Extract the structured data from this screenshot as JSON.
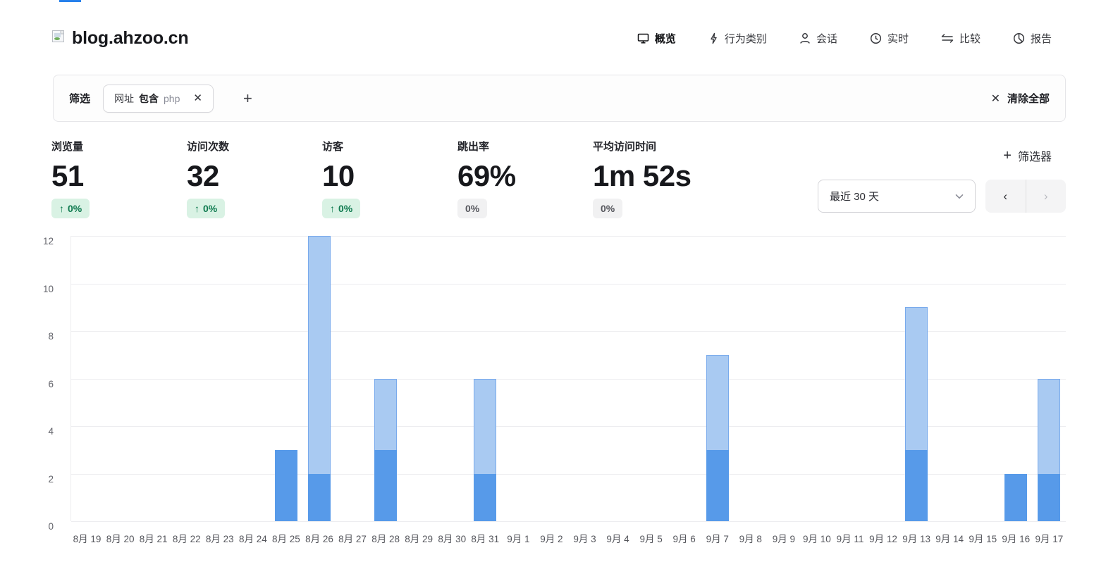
{
  "page": {
    "title": "blog.ahzoo.cn"
  },
  "nav": {
    "items": [
      {
        "label": "概览",
        "icon": "monitor-icon",
        "active": true
      },
      {
        "label": "行为类别",
        "icon": "lightning-icon",
        "active": false
      },
      {
        "label": "会话",
        "icon": "user-icon",
        "active": false
      },
      {
        "label": "实时",
        "icon": "clock-icon",
        "active": false
      },
      {
        "label": "比较",
        "icon": "compare-arrows-icon",
        "active": false
      },
      {
        "label": "报告",
        "icon": "pie-chart-icon",
        "active": false
      }
    ]
  },
  "filter_bar": {
    "label": "筛选",
    "chips": [
      {
        "field": "网址",
        "operator": "包含",
        "value": "php"
      }
    ],
    "add_label": "+",
    "clear_all_label": "清除全部",
    "clear_all_icon": "✕"
  },
  "metrics": {
    "items": [
      {
        "label": "浏览量",
        "value": "51",
        "change": "0%",
        "arrow": "↑",
        "style": "positive"
      },
      {
        "label": "访问次数",
        "value": "32",
        "change": "0%",
        "arrow": "↑",
        "style": "positive"
      },
      {
        "label": "访客",
        "value": "10",
        "change": "0%",
        "arrow": "↑",
        "style": "positive"
      },
      {
        "label": "跳出率",
        "value": "69%",
        "change": "0%",
        "arrow": "",
        "style": "neutral"
      },
      {
        "label": "平均访问时间",
        "value": "1m 52s",
        "change": "0%",
        "arrow": "",
        "style": "neutral"
      }
    ]
  },
  "controls": {
    "filters_button_label": "筛选器",
    "filters_button_plus": "+",
    "date_range_value": "最近 30 天",
    "prev_label": "‹",
    "next_label": "›"
  },
  "chart_data": {
    "type": "bar",
    "stacked": true,
    "title": "",
    "xlabel": "",
    "ylabel": "",
    "ylim": [
      0,
      12
    ],
    "yticks": [
      0,
      2,
      4,
      6,
      8,
      10,
      12
    ],
    "grid": true,
    "legend_position": "none",
    "categories": [
      "8月 19",
      "8月 20",
      "8月 21",
      "8月 22",
      "8月 23",
      "8月 24",
      "8月 25",
      "8月 26",
      "8月 27",
      "8月 28",
      "8月 29",
      "8月 30",
      "8月 31",
      "9月 1",
      "9月 2",
      "9月 3",
      "9月 4",
      "9月 5",
      "9月 6",
      "9月 7",
      "9月 8",
      "9月 9",
      "9月 10",
      "9月 11",
      "9月 12",
      "9月 13",
      "9月 14",
      "9月 15",
      "9月 16",
      "9月 17"
    ],
    "series": [
      {
        "name": "浏览量",
        "color": "#a9caf2",
        "values": [
          0,
          0,
          0,
          0,
          0,
          0,
          3,
          12,
          0,
          6,
          0,
          0,
          6,
          0,
          0,
          0,
          0,
          0,
          0,
          7,
          0,
          0,
          0,
          0,
          0,
          9,
          0,
          0,
          2,
          6
        ]
      },
      {
        "name": "访客",
        "color": "#579ae9",
        "values": [
          0,
          0,
          0,
          0,
          0,
          0,
          3,
          2,
          0,
          3,
          0,
          0,
          2,
          0,
          0,
          0,
          0,
          0,
          0,
          3,
          0,
          0,
          0,
          0,
          0,
          3,
          0,
          0,
          2,
          2
        ]
      }
    ]
  },
  "colors": {
    "accent": "#2680eb",
    "bar_views": "#a9caf2",
    "bar_visitors": "#579ae9",
    "badge_positive_bg": "#d9f2e4",
    "badge_positive_text": "#0e7a4f",
    "badge_neutral_bg": "#f1f1f2",
    "badge_neutral_text": "#55565c",
    "gridline": "#ededf0"
  }
}
